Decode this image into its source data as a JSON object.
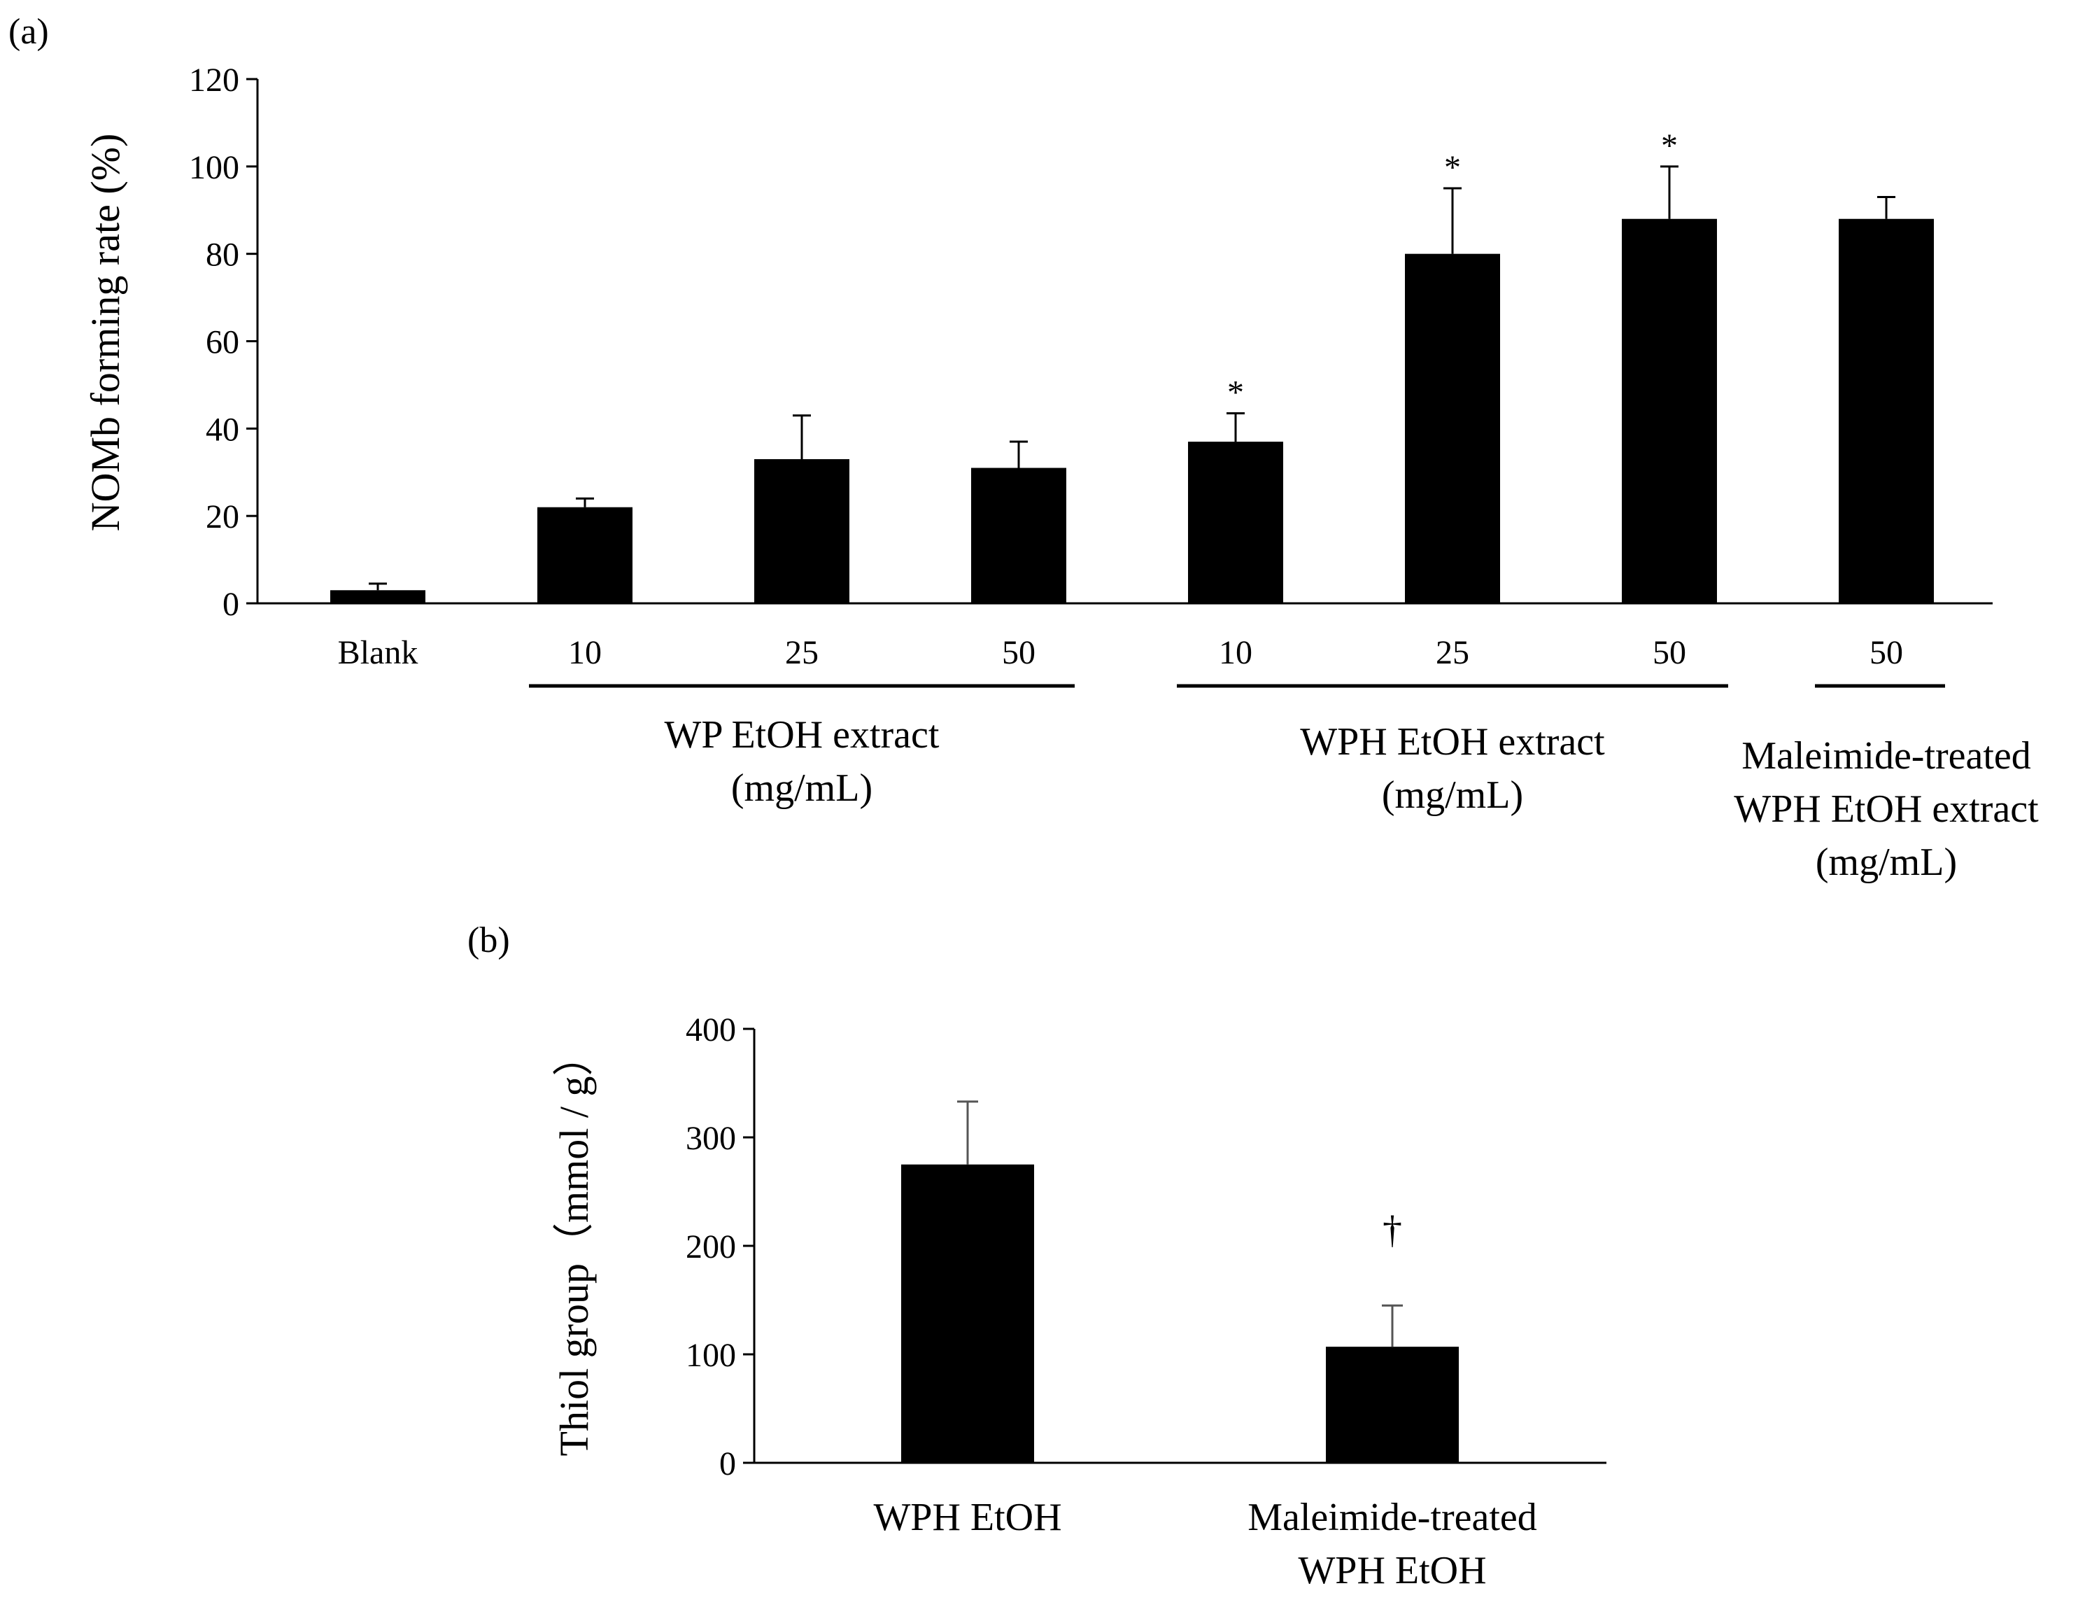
{
  "chart_data": [
    {
      "panel": "(a)",
      "type": "bar",
      "ylabel": "NOMb forming rate (%)",
      "ylim": [
        0,
        120
      ],
      "yticks": [
        0,
        20,
        40,
        60,
        80,
        100,
        120
      ],
      "bar_color": "#000000",
      "categories": [
        "Blank",
        "10",
        "25",
        "50",
        "10",
        "25",
        "50",
        "50"
      ],
      "values": [
        3,
        22,
        33,
        31,
        37,
        80,
        88,
        88
      ],
      "errors": [
        1.5,
        2,
        10,
        6,
        6.5,
        15,
        12,
        5
      ],
      "annotations": [
        "",
        "",
        "",
        "",
        "*",
        "*",
        "*",
        ""
      ],
      "groups": [
        {
          "label_lines": [
            "WP EtOH extract",
            "(mg/mL)"
          ],
          "bars": [
            1,
            2,
            3
          ]
        },
        {
          "label_lines": [
            "WPH EtOH extract",
            "(mg/mL)"
          ],
          "bars": [
            4,
            5,
            6
          ]
        },
        {
          "label_lines": [
            "Maleimide-treated",
            "WPH EtOH extract",
            "(mg/mL)"
          ],
          "bars": [
            7
          ]
        }
      ]
    },
    {
      "panel": "(b)",
      "type": "bar",
      "ylabel": "Thiol group（mmol / g）",
      "ylim": [
        0,
        400
      ],
      "yticks": [
        0,
        100,
        200,
        300,
        400
      ],
      "bar_color": "#000000",
      "categories": [
        [
          "WPH EtOH"
        ],
        [
          "Maleimide-treated",
          "WPH EtOH"
        ]
      ],
      "values": [
        275,
        107
      ],
      "errors": [
        58,
        38
      ],
      "annotations": [
        "",
        "†"
      ]
    }
  ]
}
